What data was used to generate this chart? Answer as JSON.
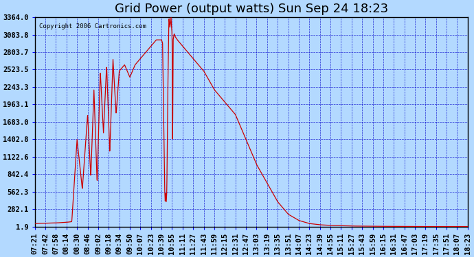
{
  "title": "Grid Power (output watts) Sun Sep 24 18:23",
  "copyright": "Copyright 2006 Cartronics.com",
  "background_color": "#b3d9ff",
  "plot_bg_color": "#b3d9ff",
  "line_color": "#cc0000",
  "grid_color": "#0000cc",
  "border_color": "#000000",
  "y_ticks": [
    1.9,
    282.1,
    562.3,
    842.4,
    1122.6,
    1402.8,
    1683.0,
    1963.1,
    2243.3,
    2523.5,
    2803.7,
    3083.8,
    3364.0
  ],
  "x_labels": [
    "07:21",
    "07:42",
    "07:58",
    "08:14",
    "08:30",
    "08:46",
    "09:02",
    "09:18",
    "09:34",
    "09:50",
    "10:07",
    "10:23",
    "10:39",
    "10:55",
    "11:11",
    "11:27",
    "11:43",
    "11:59",
    "12:15",
    "12:31",
    "12:47",
    "13:03",
    "13:19",
    "13:35",
    "13:51",
    "14:07",
    "14:23",
    "14:39",
    "14:55",
    "15:11",
    "15:27",
    "15:43",
    "15:59",
    "16:15",
    "16:31",
    "16:47",
    "17:03",
    "17:19",
    "17:35",
    "17:51",
    "18:07",
    "18:23"
  ],
  "ymin": 1.9,
  "ymax": 3364.0,
  "title_fontsize": 13,
  "tick_fontsize": 7.5,
  "copyright_fontsize": 6.5
}
